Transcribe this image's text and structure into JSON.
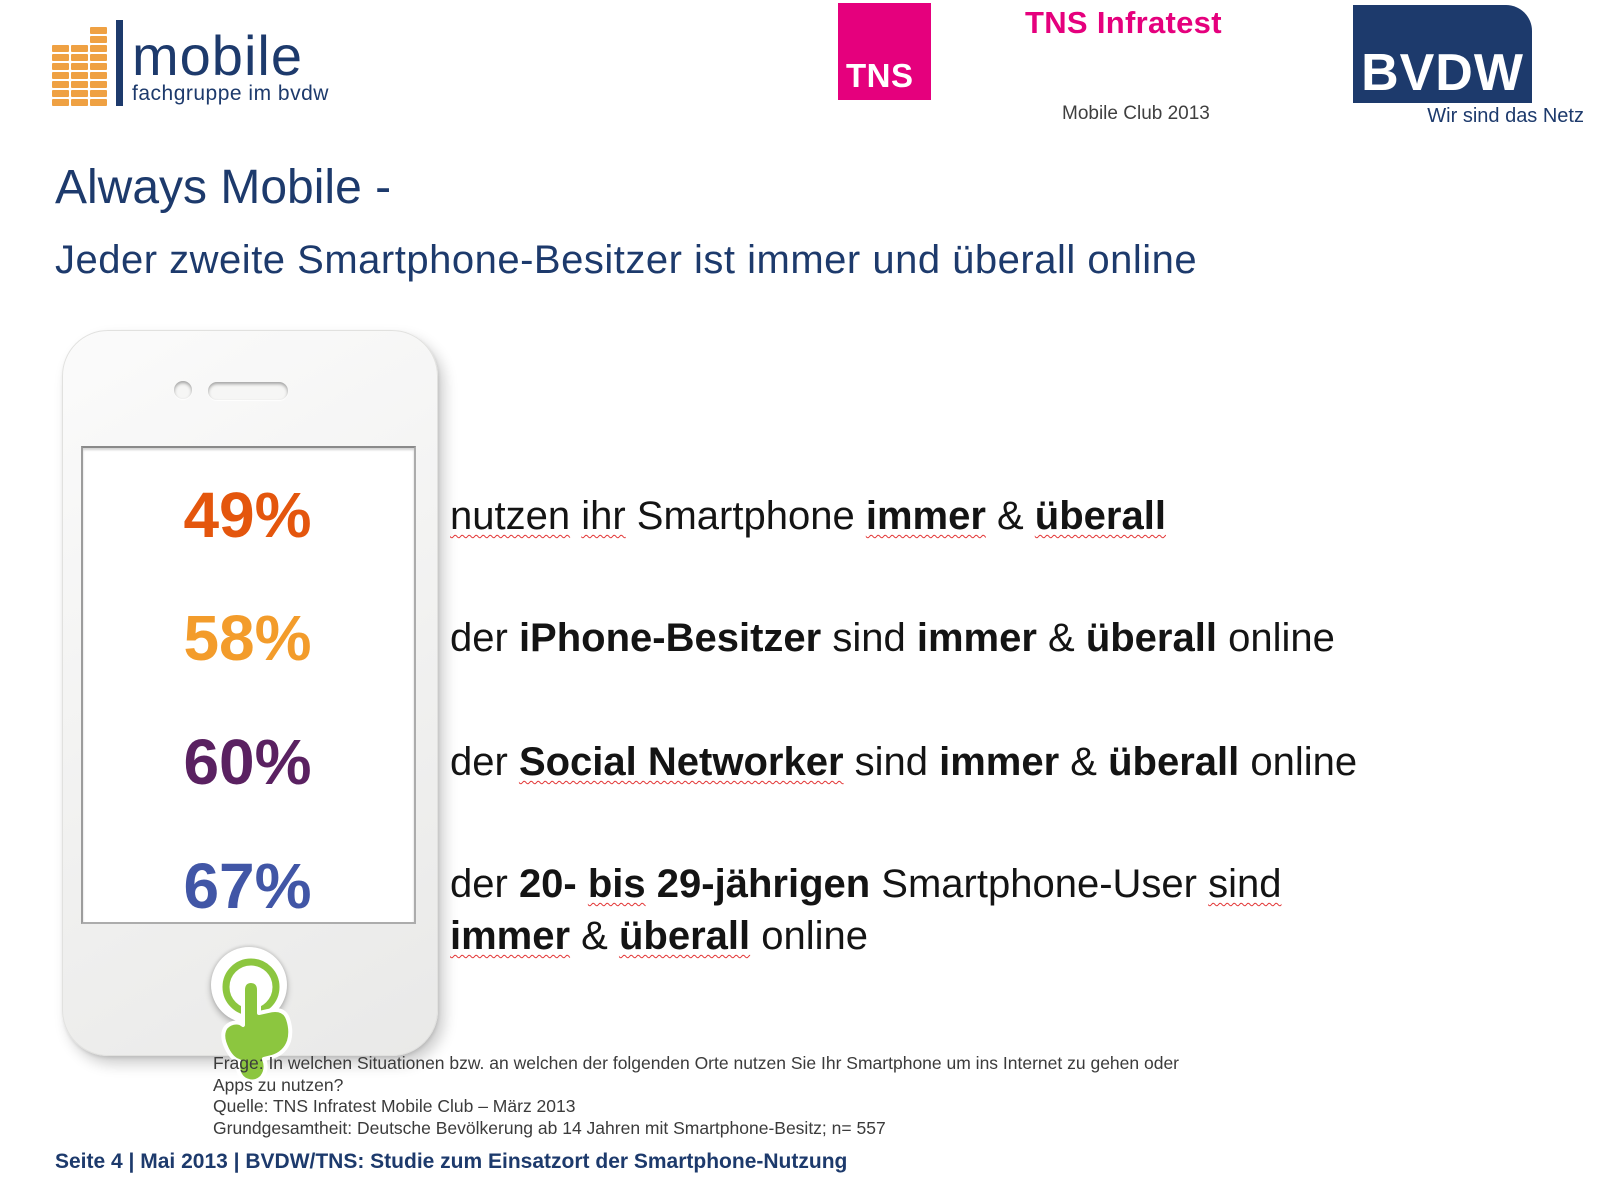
{
  "brand": {
    "mobile_logo": {
      "title": "mobile",
      "subtitle": "fachgruppe im bvdw"
    },
    "tns": {
      "square_label": "TNS",
      "name": "TNS Infratest",
      "program": "Mobile Club 2013"
    },
    "bvdw": {
      "name": "BVDW",
      "tagline": "Wir sind das Netz"
    }
  },
  "heading": {
    "title": "Always Mobile -",
    "subtitle": "Jeder zweite Smartphone-Besitzer ist immer und überall online"
  },
  "stats": [
    {
      "value": "49%",
      "color": "#e4560d",
      "lines": [
        [
          {
            "text": "nutzen",
            "wavy": true
          },
          {
            "text": " "
          },
          {
            "text": "ihr",
            "wavy": true
          },
          {
            "text": " Smartphone "
          },
          {
            "text": "immer",
            "bold": true,
            "wavy": true
          },
          {
            "text": " & "
          },
          {
            "text": "überall",
            "bold": true,
            "wavy": true
          }
        ]
      ]
    },
    {
      "value": "58%",
      "color": "#f39c2b",
      "lines": [
        [
          {
            "text": "der "
          },
          {
            "text": "iPhone-Besitzer",
            "bold": true
          },
          {
            "text": " sind "
          },
          {
            "text": "immer",
            "bold": true
          },
          {
            "text": " & "
          },
          {
            "text": "überall",
            "bold": true
          },
          {
            "text": " online"
          }
        ]
      ]
    },
    {
      "value": "60%",
      "color": "#5a2161",
      "lines": [
        [
          {
            "text": "der "
          },
          {
            "text": "Social Networker",
            "bold": true,
            "wavy": true
          },
          {
            "text": " sind "
          },
          {
            "text": "immer",
            "bold": true
          },
          {
            "text": " & "
          },
          {
            "text": "überall",
            "bold": true
          },
          {
            "text": " online"
          }
        ]
      ]
    },
    {
      "value": "67%",
      "color": "#4156a6",
      "lines": [
        [
          {
            "text": "der "
          },
          {
            "text": "20- ",
            "bold": true
          },
          {
            "text": "bis",
            "bold": true,
            "wavy": true
          },
          {
            "text": " 29-jährigen",
            "bold": true
          },
          {
            "text": " Smartphone-User "
          },
          {
            "text": "sind",
            "wavy": true
          }
        ],
        [
          {
            "text": "immer",
            "bold": true,
            "wavy": true
          },
          {
            "text": " & "
          },
          {
            "text": "überall",
            "bold": true,
            "wavy": true
          },
          {
            "text": " online"
          }
        ]
      ]
    }
  ],
  "footnotes": {
    "lines": [
      "Frage: In welchen Situationen bzw. an welchen der folgenden Orte nutzen Sie Ihr Smartphone um ins Internet zu gehen oder",
      "Apps zu nutzen?",
      "Quelle: TNS Infratest Mobile Club – März 2013",
      "Grundgesamtheit: Deutsche Bevölkerung ab 14 Jahren mit Smartphone-Besitz; n= 557"
    ]
  },
  "footer": {
    "text": "Seite 4 | Mai 2013 | BVDW/TNS: Studie zum Einsatzort der Smartphone-Nutzung"
  },
  "colors": {
    "navy": "#1d3a6c",
    "pink": "#e5007d",
    "green": "#8cc63f",
    "orange_logo": "#efa143"
  }
}
